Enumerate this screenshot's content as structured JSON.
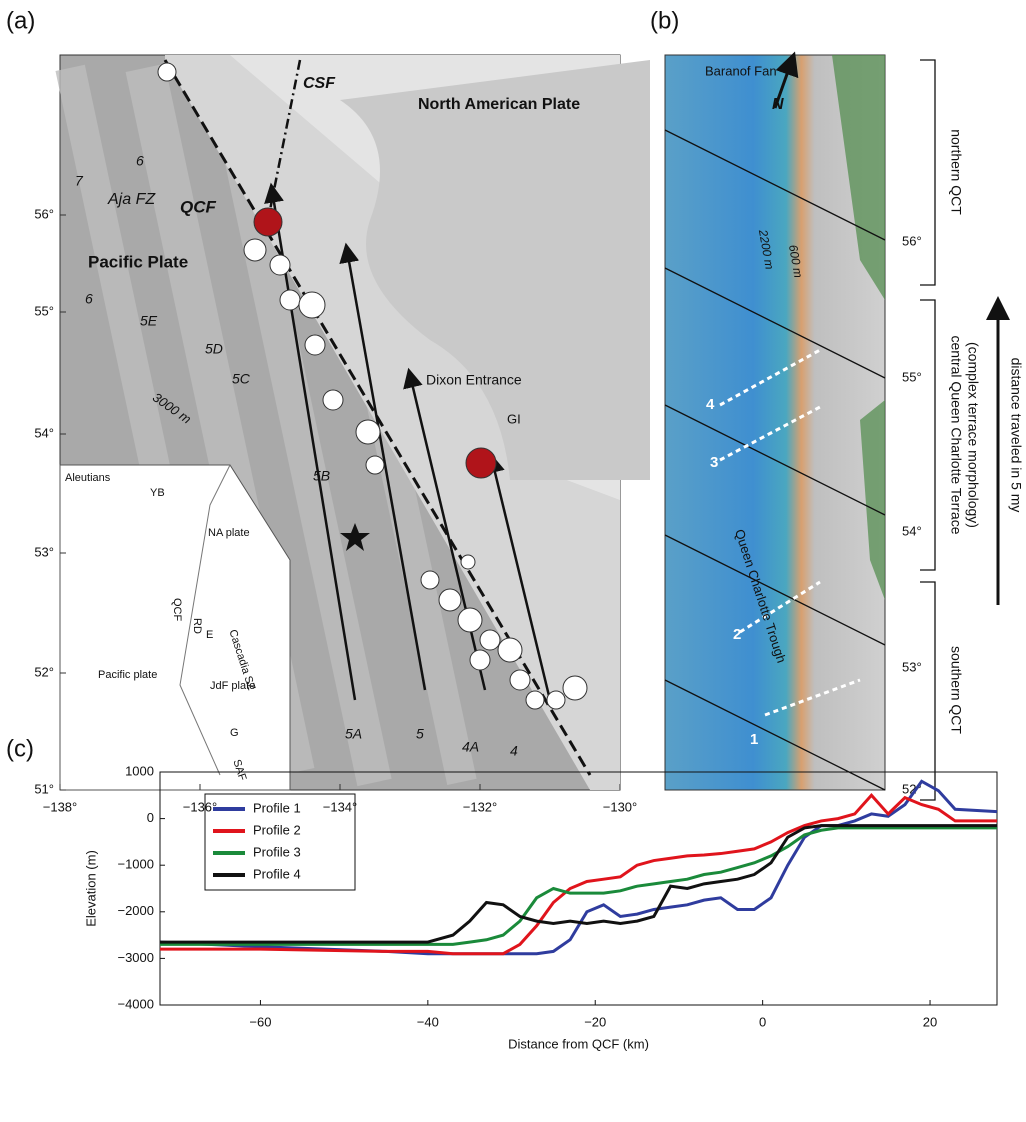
{
  "panel_a": {
    "label": "(a)",
    "lon_ticks": [
      "−138°",
      "−136°",
      "−134°",
      "−132°",
      "−130°"
    ],
    "lat_ticks": [
      "51°",
      "52°",
      "53°",
      "54°",
      "55°",
      "56°"
    ],
    "labels": {
      "csf": "CSF",
      "north_american_plate": "North American Plate",
      "aja_fz": "Aja FZ",
      "qcf": "QCF",
      "pacific_plate": "Pacific Plate",
      "dixon_entrance": "Dixon Entrance",
      "gi": "GI",
      "contour": "3000 m"
    },
    "anomalies": [
      "7",
      "6",
      "6",
      "5E",
      "5D",
      "5C",
      "5B",
      "5A",
      "5",
      "4A",
      "4"
    ],
    "inset": [
      "Aleutians",
      "YB",
      "NA plate",
      "QCF",
      "RD",
      "E",
      "Cascadia SZ",
      "Pacific plate",
      "JdF plate",
      "G",
      "SAF"
    ]
  },
  "panel_b": {
    "label": "(b)",
    "lat_ticks": [
      "56°",
      "55°",
      "54°",
      "53°",
      "52°"
    ],
    "labels": [
      "Baranof Fan",
      "N",
      "2200 m",
      "600 m",
      "Queen Charlotte Trough"
    ],
    "profiles": [
      "1",
      "2",
      "3",
      "4"
    ],
    "segments": [
      "northern QCT",
      "central Queen Charlotte Terrace",
      "(complex terrace morphology)",
      "southern QCT"
    ],
    "arrow_label": "distance traveled in 5 my"
  },
  "chart_data": {
    "type": "line",
    "panel_label": "(c)",
    "xlabel": "Distance from QCF (km)",
    "ylabel": "Elevation (m)",
    "xlim": [
      -72,
      28
    ],
    "ylim": [
      -4000,
      1000
    ],
    "xticks": [
      {
        "value": -60,
        "label": "−60"
      },
      {
        "value": -40,
        "label": "−40"
      },
      {
        "value": -20,
        "label": "−20"
      },
      0,
      20
    ],
    "yticks": [
      {
        "value": -4000,
        "label": "−4000"
      },
      {
        "value": -3000,
        "label": "−3000"
      },
      {
        "value": -2000,
        "label": "−2000"
      },
      {
        "value": -1000,
        "label": "−1000"
      },
      0,
      1000
    ],
    "legend": "upper left",
    "x": [
      -72,
      -60,
      -45,
      -40,
      -37,
      -35,
      -33,
      -31,
      -29,
      -27,
      -25,
      -23,
      -21,
      -19,
      -17,
      -15,
      -13,
      -11,
      -9,
      -7,
      -5,
      -3,
      -1,
      1,
      3,
      5,
      7,
      9,
      11,
      13,
      15,
      17,
      19,
      21,
      23,
      28
    ],
    "series": [
      {
        "name": "Profile 1",
        "color": "#2f3c9e",
        "values": [
          -2650,
          -2750,
          -2850,
          -2900,
          -2900,
          -2900,
          -2900,
          -2900,
          -2900,
          -2900,
          -2850,
          -2600,
          -2000,
          -1850,
          -2100,
          -2050,
          -1950,
          -1900,
          -1850,
          -1750,
          -1700,
          -1950,
          -1950,
          -1700,
          -1000,
          -400,
          -150,
          -150,
          -50,
          100,
          50,
          300,
          800,
          600,
          200,
          150
        ]
      },
      {
        "name": "Profile 2",
        "color": "#e0141c",
        "values": [
          -2800,
          -2800,
          -2850,
          -2850,
          -2900,
          -2900,
          -2900,
          -2900,
          -2700,
          -2300,
          -1800,
          -1500,
          -1350,
          -1300,
          -1250,
          -1000,
          -900,
          -850,
          -800,
          -780,
          -750,
          -700,
          -650,
          -500,
          -300,
          -150,
          -50,
          0,
          100,
          500,
          100,
          450,
          300,
          200,
          -50,
          -50
        ]
      },
      {
        "name": "Profile 3",
        "color": "#1a8a3a",
        "values": [
          -2700,
          -2700,
          -2700,
          -2700,
          -2700,
          -2650,
          -2600,
          -2500,
          -2200,
          -1700,
          -1500,
          -1600,
          -1600,
          -1600,
          -1550,
          -1450,
          -1400,
          -1350,
          -1300,
          -1200,
          -1150,
          -1050,
          -950,
          -800,
          -600,
          -350,
          -250,
          -200,
          -200,
          -200,
          -200,
          -200,
          -200,
          -200,
          -200,
          -200
        ]
      },
      {
        "name": "Profile 4",
        "color": "#111111",
        "values": [
          -2650,
          -2650,
          -2650,
          -2650,
          -2500,
          -2200,
          -1800,
          -1850,
          -2100,
          -2200,
          -2250,
          -2200,
          -2250,
          -2200,
          -2250,
          -2200,
          -2100,
          -1450,
          -1500,
          -1400,
          -1350,
          -1300,
          -1200,
          -950,
          -400,
          -200,
          -150,
          -150,
          -150,
          -150,
          -150,
          -150,
          -150,
          -150,
          -150,
          -150
        ]
      }
    ]
  }
}
